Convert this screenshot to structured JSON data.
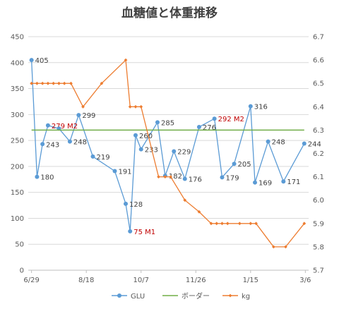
{
  "chart_data": {
    "type": "line",
    "title": "血糖値と体重推移",
    "x_tick_labels": [
      "6/29",
      "8/18",
      "10/7",
      "11/26",
      "1/15",
      "3/6"
    ],
    "y_left": {
      "min": 0,
      "max": 450,
      "step": 50
    },
    "y_right": {
      "min": 5.7,
      "max": 6.7,
      "step": 0.1
    },
    "grid": true,
    "legend_position": "bottom",
    "series": [
      {
        "name": "GLU",
        "axis": "left",
        "color": "#5b9bd5",
        "marker": "circle",
        "points": [
          {
            "x": "6/29",
            "y": 405,
            "label": "405"
          },
          {
            "x": "7/4",
            "y": 180,
            "label": "180"
          },
          {
            "x": "7/9",
            "y": 243,
            "label": "243"
          },
          {
            "x": "7/14",
            "y": 279,
            "label": "279 M2",
            "highlight": true
          },
          {
            "x": "7/24",
            "y": 273,
            "label": ""
          },
          {
            "x": "8/3",
            "y": 248,
            "label": "248"
          },
          {
            "x": "8/11",
            "y": 299,
            "label": "299"
          },
          {
            "x": "8/24",
            "y": 219,
            "label": "219"
          },
          {
            "x": "9/13",
            "y": 191,
            "label": "191"
          },
          {
            "x": "9/23",
            "y": 128,
            "label": "128"
          },
          {
            "x": "9/27",
            "y": 75,
            "label": "75 M1",
            "highlight": true
          },
          {
            "x": "10/2",
            "y": 260,
            "label": "260"
          },
          {
            "x": "10/7",
            "y": 233,
            "label": "233"
          },
          {
            "x": "10/22",
            "y": 285,
            "label": "285"
          },
          {
            "x": "10/29",
            "y": 182,
            "label": "182"
          },
          {
            "x": "11/6",
            "y": 229,
            "label": "229"
          },
          {
            "x": "11/16",
            "y": 176,
            "label": "176"
          },
          {
            "x": "11/29",
            "y": 276,
            "label": "276"
          },
          {
            "x": "12/13",
            "y": 292,
            "label": "292 M2",
            "highlight": true
          },
          {
            "x": "12/20",
            "y": 179,
            "label": "179"
          },
          {
            "x": "12/31",
            "y": 205,
            "label": "205"
          },
          {
            "x": "1/15",
            "y": 316,
            "label": "316"
          },
          {
            "x": "1/19",
            "y": 169,
            "label": "169"
          },
          {
            "x": "1/31",
            "y": 248,
            "label": "248"
          },
          {
            "x": "2/14",
            "y": 171,
            "label": "171"
          },
          {
            "x": "3/5",
            "y": 244,
            "label": "244"
          }
        ]
      },
      {
        "name": "ボーダー",
        "axis": "left",
        "color": "#70ad47",
        "marker": "none",
        "points": [
          {
            "x": "6/29",
            "y": 270
          },
          {
            "x": "3/5",
            "y": 270
          }
        ]
      },
      {
        "name": "kg",
        "axis": "right",
        "color": "#ed7d31",
        "marker": "diamond",
        "points": [
          {
            "x": "6/29",
            "y": 6.5
          },
          {
            "x": "7/4",
            "y": 6.5
          },
          {
            "x": "7/9",
            "y": 6.5
          },
          {
            "x": "7/14",
            "y": 6.5
          },
          {
            "x": "7/19",
            "y": 6.5
          },
          {
            "x": "7/24",
            "y": 6.5
          },
          {
            "x": "7/29",
            "y": 6.5
          },
          {
            "x": "8/4",
            "y": 6.5
          },
          {
            "x": "8/15",
            "y": 6.4
          },
          {
            "x": "9/1",
            "y": 6.5
          },
          {
            "x": "9/23",
            "y": 6.6
          },
          {
            "x": "9/27",
            "y": 6.4
          },
          {
            "x": "10/2",
            "y": 6.4
          },
          {
            "x": "10/7",
            "y": 6.4
          },
          {
            "x": "10/23",
            "y": 6.1
          },
          {
            "x": "10/29",
            "y": 6.1
          },
          {
            "x": "11/3",
            "y": 6.1
          },
          {
            "x": "11/16",
            "y": 6.0
          },
          {
            "x": "11/29",
            "y": 5.95
          },
          {
            "x": "12/10",
            "y": 5.9
          },
          {
            "x": "12/15",
            "y": 5.9
          },
          {
            "x": "12/20",
            "y": 5.9
          },
          {
            "x": "12/25",
            "y": 5.9
          },
          {
            "x": "1/5",
            "y": 5.9
          },
          {
            "x": "1/15",
            "y": 5.9
          },
          {
            "x": "1/20",
            "y": 5.9
          },
          {
            "x": "2/5",
            "y": 5.8
          },
          {
            "x": "2/16",
            "y": 5.8
          },
          {
            "x": "3/5",
            "y": 5.9
          }
        ]
      }
    ]
  }
}
